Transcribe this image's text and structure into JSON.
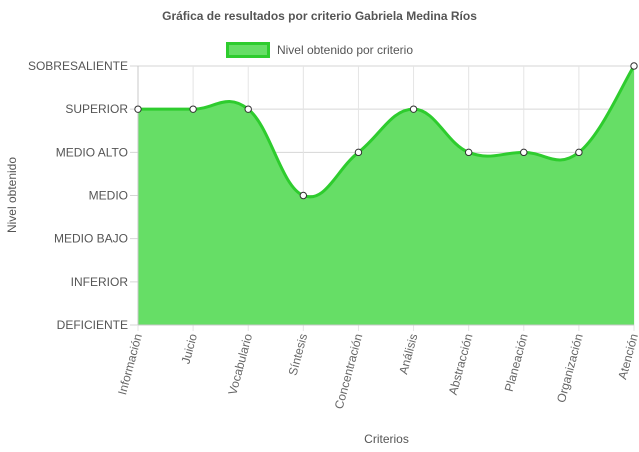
{
  "chart_data": {
    "type": "area",
    "title": "Gráfica de resultados por criterio Gabriela Medina Ríos",
    "xlabel": "Criterios",
    "ylabel": "Nivel obtenido",
    "legend_position": "top",
    "grid": true,
    "y_levels": [
      "DEFICIENTE",
      "INFERIOR",
      "MEDIO BAJO",
      "MEDIO",
      "MEDIO ALTO",
      "SUPERIOR",
      "SOBRESALIENTE"
    ],
    "categories": [
      "Información",
      "Juicio",
      "Vocabulario",
      "Síntesis",
      "Concentración",
      "Análisis",
      "Abstracción",
      "Planeación",
      "Organización",
      "Atención"
    ],
    "series": [
      {
        "name": "Nivel obtenido por criterio",
        "values": [
          "SUPERIOR",
          "SUPERIOR",
          "SUPERIOR",
          "MEDIO",
          "MEDIO ALTO",
          "SUPERIOR",
          "MEDIO ALTO",
          "MEDIO ALTO",
          "MEDIO ALTO",
          "SOBRESALIENTE"
        ],
        "fill_color": "#66de66",
        "line_color": "#2ecc2e"
      }
    ]
  }
}
